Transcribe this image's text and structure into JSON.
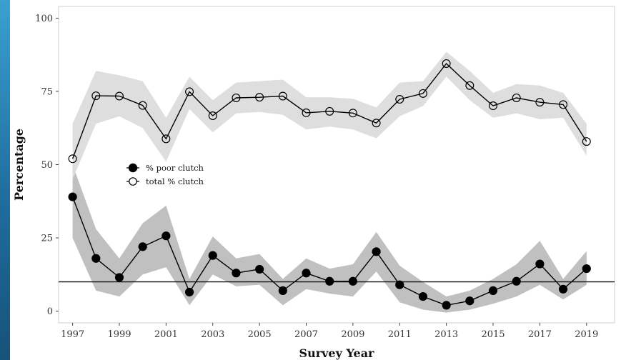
{
  "chart_data": {
    "type": "line",
    "title": "",
    "xlabel": "Survey Year",
    "ylabel": "Percentage",
    "xlim": [
      1996.4,
      2020.2
    ],
    "ylim": [
      -4,
      104
    ],
    "x_ticks": [
      "1997",
      "1999",
      "2001",
      "2003",
      "2005",
      "2007",
      "2009",
      "2011",
      "2013",
      "2015",
      "2017",
      "2019"
    ],
    "y_ticks": [
      "0",
      "25",
      "50",
      "75",
      "100"
    ],
    "x": [
      1997,
      1998,
      1999,
      2000,
      2001,
      2002,
      2003,
      2004,
      2005,
      2006,
      2007,
      2008,
      2009,
      2010,
      2011,
      2012,
      2013,
      2014,
      2015,
      2016,
      2017,
      2018,
      2019
    ],
    "reference_line_y": 10,
    "grid": false,
    "legend_position": "center-left",
    "series": [
      {
        "name": "% poor clutch",
        "marker": "filled-circle",
        "color": "#000000",
        "band_color": "#bdbdbd",
        "values": [
          39,
          18,
          11.5,
          22,
          25.7,
          6.5,
          19,
          13,
          14.3,
          7,
          13,
          10.2,
          10.2,
          20.3,
          9,
          5,
          2,
          3.5,
          7,
          10.2,
          16.1,
          7.5,
          14.5
        ],
        "lower": [
          25,
          7,
          5,
          12.5,
          15,
          2,
          12.5,
          8.5,
          9,
          2,
          7.5,
          6,
          5,
          13.5,
          3,
          0.5,
          -0.5,
          0.5,
          2.5,
          5,
          9,
          4,
          9
        ],
        "upper": [
          50,
          28,
          18,
          30,
          36,
          11,
          25.5,
          18,
          19.5,
          11,
          18,
          14.5,
          16,
          27,
          15.5,
          10,
          5,
          7,
          11,
          16,
          24,
          11,
          20.5
        ]
      },
      {
        "name": "total % clutch",
        "marker": "open-circle",
        "color": "#000000",
        "band_color": "#dcdcdc",
        "values": [
          52,
          73.5,
          73.4,
          70.2,
          58.8,
          74.9,
          66.7,
          72.8,
          73,
          73.4,
          67.7,
          68.2,
          67.6,
          64.2,
          72.3,
          74.3,
          84.5,
          77,
          70.1,
          72.8,
          71.3,
          70.5,
          57.9
        ],
        "lower": [
          45,
          64,
          66.5,
          62.5,
          51,
          69,
          61,
          67.5,
          68,
          67,
          62,
          63,
          62,
          59,
          66.5,
          70,
          80,
          72,
          66,
          67.5,
          65.5,
          66,
          53
        ],
        "upper": [
          64,
          82,
          80.5,
          78.5,
          66,
          80,
          72,
          78,
          78.5,
          79,
          73,
          73,
          72.5,
          69.5,
          78,
          78.5,
          88.5,
          82,
          74.5,
          77.5,
          77,
          74.5,
          64
        ]
      }
    ]
  }
}
